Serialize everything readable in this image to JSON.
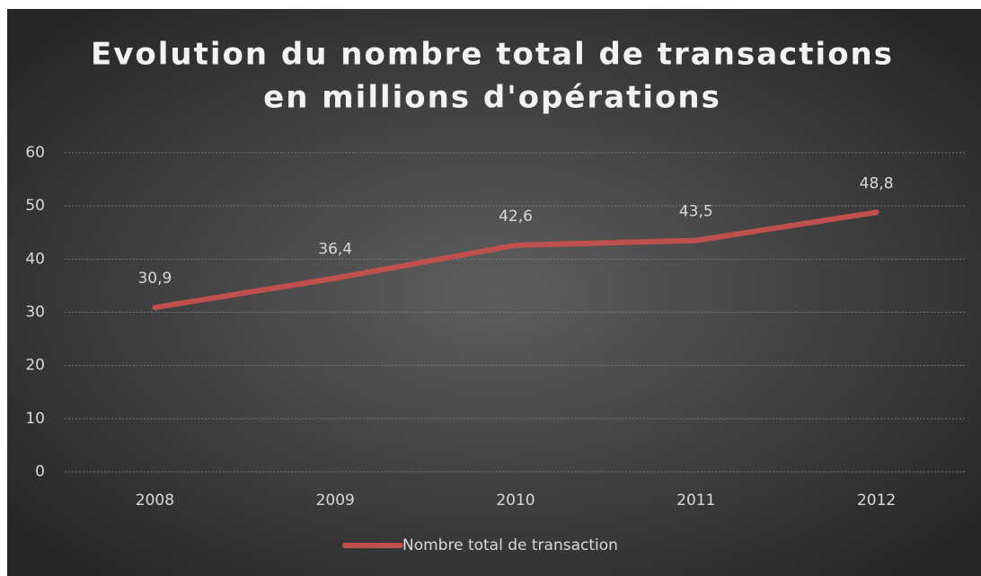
{
  "chart_data": {
    "type": "line",
    "title": [
      "Evolution du nombre total de transactions",
      "en millions d'opérations"
    ],
    "categories": [
      "2008",
      "2009",
      "2010",
      "2011",
      "2012"
    ],
    "series": [
      {
        "name": "Nombre total de transaction",
        "color": "#c0504d",
        "values": [
          30.9,
          36.4,
          42.6,
          43.5,
          48.8
        ],
        "value_labels": [
          "30,9",
          "36,4",
          "42,6",
          "43,5",
          "48,8"
        ]
      }
    ],
    "ylim": [
      0,
      60
    ],
    "yticks": [
      0,
      10,
      20,
      30,
      40,
      50,
      60
    ],
    "grid": true,
    "legend": "bottom"
  }
}
